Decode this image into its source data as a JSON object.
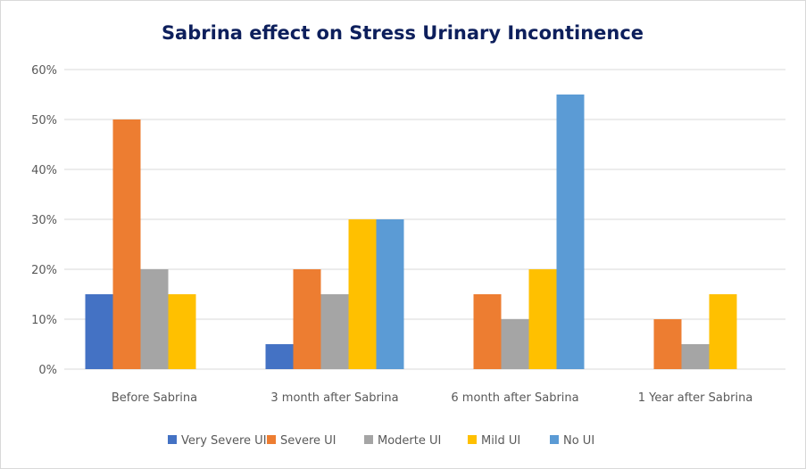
{
  "chart_data": {
    "type": "bar",
    "title": "Sabrina effect on Stress Urinary Incontinence",
    "xlabel": "",
    "ylabel": "",
    "ylim": [
      0,
      60
    ],
    "yticks": [
      "0%",
      "10%",
      "20%",
      "30%",
      "40%",
      "50%",
      "60%"
    ],
    "grid": true,
    "legend_position": "bottom",
    "categories": [
      "Before Sabrina",
      "3 month after Sabrina",
      "6 month after Sabrina",
      "1 Year after Sabrina"
    ],
    "series": [
      {
        "name": "Very Severe UI",
        "color": "#4472c4",
        "values": [
          15,
          5,
          0,
          0
        ]
      },
      {
        "name": "Severe UI",
        "color": "#ed7d31",
        "values": [
          50,
          20,
          15,
          10
        ]
      },
      {
        "name": "Moderte UI",
        "color": "#a5a5a5",
        "values": [
          20,
          15,
          10,
          5
        ]
      },
      {
        "name": "Mild UI",
        "color": "#ffc000",
        "values": [
          15,
          30,
          20,
          15
        ]
      },
      {
        "name": "No UI",
        "color": "#5b9bd5",
        "values": [
          0,
          30,
          55,
          0
        ]
      }
    ]
  }
}
